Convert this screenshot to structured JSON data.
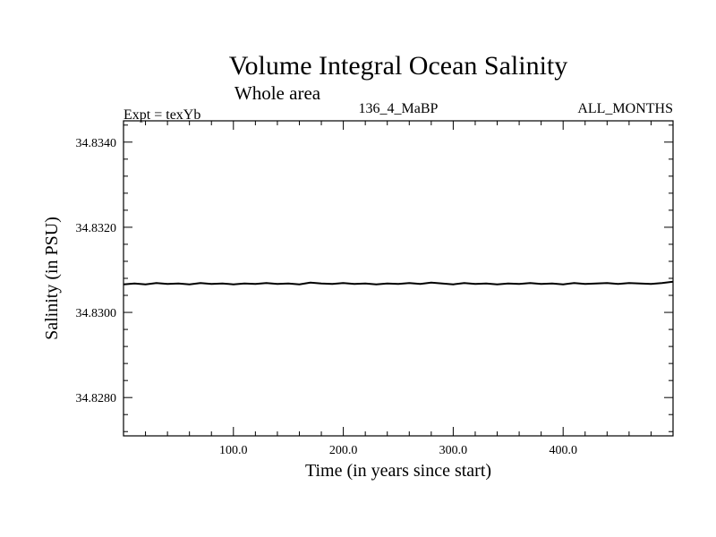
{
  "chart_data": {
    "type": "line",
    "title": "Volume Integral Ocean Salinity",
    "subtitle": "Whole area",
    "header_left": "Expt = texYb",
    "header_center": "136_4_MaBP",
    "header_right": "ALL_MONTHS",
    "xlabel": "Time (in years since start)",
    "ylabel": "Salinity (in PSU)",
    "xlim": [
      0,
      500
    ],
    "ylim": [
      34.8271,
      34.8345
    ],
    "x_ticks": [
      100,
      200,
      300,
      400
    ],
    "x_tick_labels": [
      "100.0",
      "200.0",
      "300.0",
      "400.0"
    ],
    "y_ticks": [
      34.828,
      34.83,
      34.832,
      34.834
    ],
    "y_tick_labels": [
      "34.8280",
      "34.8300",
      "34.8320",
      "34.8340"
    ],
    "x_minor_step": 20,
    "y_minor_step": 0.0004,
    "grid": false,
    "series": [
      {
        "color": "#000000",
        "x": [
          0,
          10,
          20,
          30,
          40,
          50,
          60,
          70,
          80,
          90,
          100,
          110,
          120,
          130,
          140,
          150,
          160,
          170,
          180,
          190,
          200,
          210,
          220,
          230,
          240,
          250,
          260,
          270,
          280,
          290,
          300,
          310,
          320,
          330,
          340,
          350,
          360,
          370,
          380,
          390,
          400,
          410,
          420,
          430,
          440,
          450,
          460,
          470,
          480,
          490,
          500
        ],
        "values": [
          34.83066,
          34.83068,
          34.83066,
          34.83069,
          34.83067,
          34.83068,
          34.83066,
          34.83069,
          34.83067,
          34.83068,
          34.83066,
          34.83068,
          34.83067,
          34.83069,
          34.83067,
          34.83068,
          34.83066,
          34.8307,
          34.83068,
          34.83067,
          34.83069,
          34.83067,
          34.83068,
          34.83066,
          34.83068,
          34.83067,
          34.83069,
          34.83067,
          34.8307,
          34.83068,
          34.83066,
          34.83069,
          34.83067,
          34.83068,
          34.83066,
          34.83068,
          34.83067,
          34.83069,
          34.83067,
          34.83068,
          34.83066,
          34.83069,
          34.83067,
          34.83068,
          34.83069,
          34.83067,
          34.83069,
          34.83068,
          34.83067,
          34.83069,
          34.83072
        ]
      }
    ]
  }
}
